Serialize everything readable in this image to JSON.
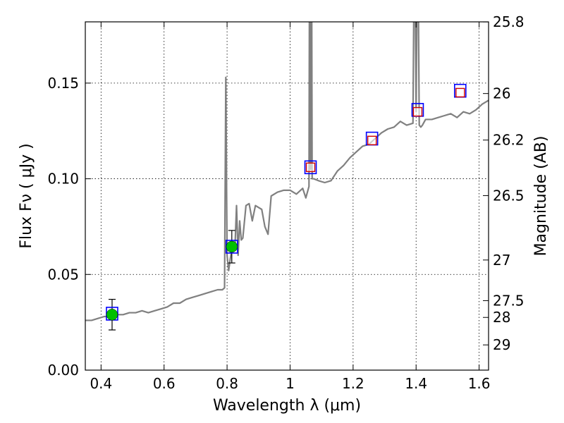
{
  "chart_data": {
    "type": "line",
    "xlabel": "Wavelength  λ (μm)",
    "ylabel": "Flux  Fν  ( μJy )",
    "ylabel_right": "Magnitude (AB)",
    "xlim": [
      0.35,
      1.63
    ],
    "ylim": [
      0.0,
      0.182
    ],
    "grid": true,
    "x_ticks": [
      0.4,
      0.6,
      0.8,
      1.0,
      1.2,
      1.4,
      1.6
    ],
    "x_tick_labels": [
      "0.4",
      "0.6",
      "0.8",
      "1",
      "1.2",
      "1.4",
      "1.6"
    ],
    "y_ticks": [
      0.0,
      0.05,
      0.1,
      0.15
    ],
    "y_tick_labels": [
      "0.00",
      "0.05",
      "0.10",
      "0.15"
    ],
    "mag_ticks": [
      {
        "label": "25.8",
        "mag": 25.75
      },
      {
        "label": "26",
        "mag": 26.0
      },
      {
        "label": "26.2",
        "mag": 26.2
      },
      {
        "label": "26.5",
        "mag": 26.5
      },
      {
        "label": "27",
        "mag": 27.0
      },
      {
        "label": "27.5",
        "mag": 27.5
      },
      {
        "label": "28",
        "mag": 27.8
      },
      {
        "label": "29",
        "mag": 28.6
      }
    ],
    "series": [
      {
        "kind": "spectrum",
        "color": "#808080",
        "x": [
          0.35,
          0.37,
          0.39,
          0.41,
          0.43,
          0.45,
          0.47,
          0.49,
          0.51,
          0.53,
          0.55,
          0.57,
          0.59,
          0.61,
          0.63,
          0.65,
          0.67,
          0.69,
          0.71,
          0.73,
          0.75,
          0.77,
          0.785,
          0.792,
          0.796,
          0.8,
          0.805,
          0.81,
          0.815,
          0.82,
          0.825,
          0.83,
          0.835,
          0.84,
          0.845,
          0.85,
          0.86,
          0.87,
          0.88,
          0.89,
          0.9,
          0.91,
          0.92,
          0.93,
          0.94,
          0.96,
          0.98,
          1.0,
          1.02,
          1.04,
          1.05,
          1.06,
          1.062,
          1.065,
          1.068,
          1.07,
          1.075,
          1.09,
          1.11,
          1.13,
          1.15,
          1.17,
          1.19,
          1.21,
          1.23,
          1.25,
          1.27,
          1.29,
          1.31,
          1.33,
          1.35,
          1.37,
          1.39,
          1.395,
          1.4,
          1.405,
          1.41,
          1.415,
          1.42,
          1.43,
          1.45,
          1.47,
          1.49,
          1.51,
          1.53,
          1.55,
          1.57,
          1.59,
          1.61,
          1.63
        ],
        "y": [
          0.026,
          0.026,
          0.027,
          0.028,
          0.028,
          0.029,
          0.029,
          0.03,
          0.03,
          0.031,
          0.03,
          0.031,
          0.032,
          0.033,
          0.035,
          0.035,
          0.037,
          0.038,
          0.039,
          0.04,
          0.041,
          0.042,
          0.042,
          0.043,
          0.153,
          0.06,
          0.052,
          0.058,
          0.063,
          0.065,
          0.064,
          0.086,
          0.06,
          0.078,
          0.068,
          0.069,
          0.086,
          0.087,
          0.078,
          0.086,
          0.085,
          0.084,
          0.075,
          0.071,
          0.091,
          0.093,
          0.094,
          0.094,
          0.092,
          0.095,
          0.09,
          0.096,
          0.24,
          0.105,
          0.24,
          0.1,
          0.1,
          0.099,
          0.098,
          0.099,
          0.104,
          0.107,
          0.111,
          0.114,
          0.117,
          0.118,
          0.121,
          0.124,
          0.126,
          0.127,
          0.13,
          0.128,
          0.129,
          0.24,
          0.135,
          0.24,
          0.128,
          0.127,
          0.128,
          0.131,
          0.131,
          0.132,
          0.133,
          0.134,
          0.132,
          0.135,
          0.134,
          0.136,
          0.139,
          0.141
        ]
      },
      {
        "kind": "photometry_filled",
        "marker": "circle",
        "color": "#00c000",
        "x": [
          0.435,
          0.815
        ],
        "y": [
          0.029,
          0.0645
        ],
        "yerr": [
          0.008,
          0.0085
        ]
      },
      {
        "kind": "model_outer",
        "marker": "square",
        "color": "#0000ff",
        "x": [
          0.435,
          0.815,
          1.065,
          1.26,
          1.405,
          1.54
        ],
        "y": [
          0.0295,
          0.0645,
          0.106,
          0.121,
          0.136,
          0.146
        ]
      },
      {
        "kind": "model_inner",
        "marker": "square",
        "color": "#d00000",
        "x": [
          1.065,
          1.26,
          1.405,
          1.54
        ],
        "y": [
          0.106,
          0.12,
          0.135,
          0.145
        ]
      }
    ]
  }
}
